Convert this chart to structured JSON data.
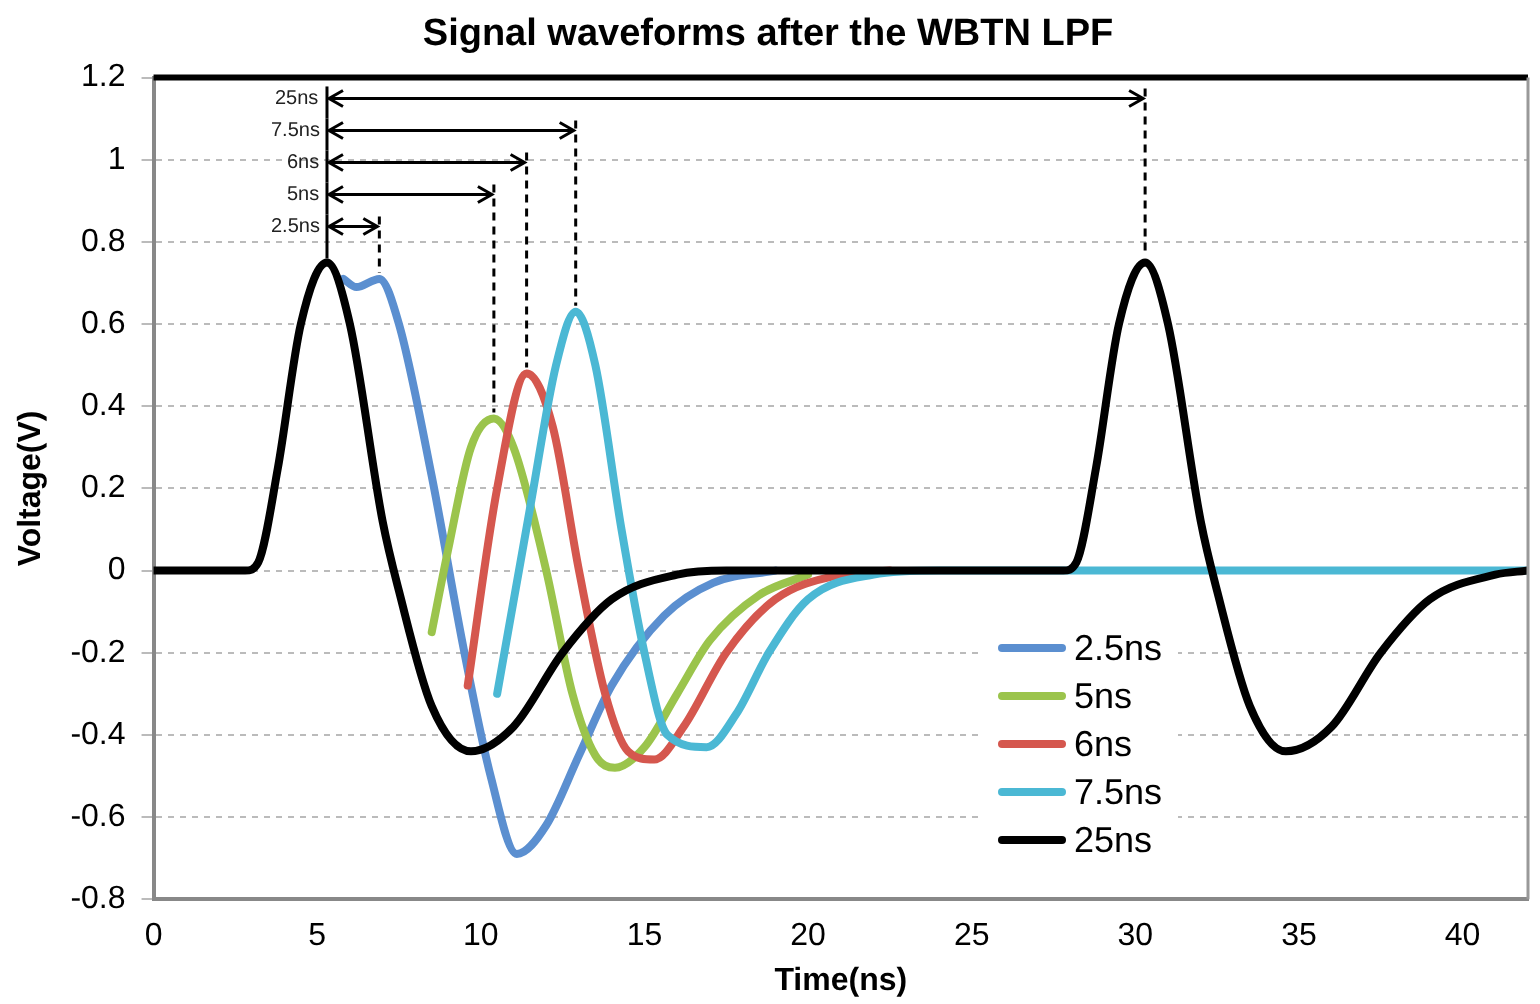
{
  "chart_data": {
    "type": "line",
    "title": "Signal waveforms after the WBTN LPF",
    "xlabel": "Time(ns)",
    "ylabel": "Voltage(V)",
    "xlim": [
      0,
      42
    ],
    "xticks": [
      0,
      5,
      10,
      15,
      20,
      25,
      30,
      35,
      40
    ],
    "ylim": [
      -0.8,
      1.2
    ],
    "yticks": [
      -0.8,
      -0.6,
      -0.4,
      -0.2,
      0,
      0.2,
      0.4,
      0.6,
      0.8,
      1,
      1.2
    ],
    "grid": "y",
    "legend": "bottom right",
    "marker": "none",
    "line_style": "solid",
    "series": [
      {
        "name": "2.5ns",
        "color": "#5b8fd0",
        "x": [
          5.8,
          6.2,
          6.9,
          7.5,
          8.5,
          9.5,
          10.3,
          11.1,
          12,
          13,
          14,
          15.6,
          17.1,
          19
        ],
        "values": [
          0.71,
          0.69,
          0.71,
          0.6,
          0.23,
          -0.2,
          -0.5,
          -0.69,
          -0.62,
          -0.45,
          -0.28,
          -0.11,
          -0.03,
          0
        ]
      },
      {
        "name": "5ns",
        "color": "#9bc44c",
        "x": [
          8.5,
          9,
          9.7,
          10.4,
          11,
          12,
          12.8,
          13.5,
          14.1,
          15,
          16,
          17,
          18.5,
          20
        ],
        "values": [
          -0.15,
          0.05,
          0.3,
          0.37,
          0.3,
          0,
          -0.3,
          -0.45,
          -0.48,
          -0.43,
          -0.3,
          -0.17,
          -0.06,
          -0.01
        ]
      },
      {
        "name": "6ns",
        "color": "#d5574e",
        "x": [
          9.6,
          10.5,
          11.4,
          12.2,
          13,
          13.8,
          14.5,
          15.3,
          16.2,
          17.5,
          19,
          21,
          22.5
        ],
        "values": [
          -0.28,
          0.2,
          0.48,
          0.35,
          0,
          -0.3,
          -0.44,
          -0.46,
          -0.38,
          -0.2,
          -0.07,
          -0.01,
          0
        ]
      },
      {
        "name": "7.5ns",
        "color": "#4bb8d4",
        "x": [
          10.5,
          11.5,
          12.3,
          12.9,
          13.5,
          14.3,
          15,
          15.7,
          16.9,
          17.8,
          18.8,
          20,
          22,
          24,
          42
        ],
        "values": [
          -0.3,
          0.15,
          0.5,
          0.63,
          0.5,
          0.1,
          -0.2,
          -0.4,
          -0.43,
          -0.35,
          -0.2,
          -0.07,
          -0.01,
          0,
          0
        ]
      },
      {
        "name": "25ns",
        "color": "#000000",
        "x": [
          0,
          2.8,
          3.2,
          3.8,
          4.5,
          5.3,
          6,
          7,
          7.5,
          8.5,
          9.7,
          11,
          12.5,
          14,
          16,
          17.5,
          27.8,
          28.2,
          28.8,
          29.5,
          30.3,
          31,
          32,
          32.5,
          33.5,
          34.6,
          36,
          37.5,
          39,
          41,
          42
        ],
        "values": [
          0,
          0,
          0.02,
          0.25,
          0.6,
          0.75,
          0.6,
          0.12,
          -0.05,
          -0.33,
          -0.44,
          -0.38,
          -0.2,
          -0.07,
          -0.01,
          0,
          0,
          0.02,
          0.25,
          0.6,
          0.75,
          0.6,
          0.12,
          -0.05,
          -0.33,
          -0.44,
          -0.38,
          -0.2,
          -0.07,
          -0.01,
          0
        ]
      }
    ],
    "annotations": [
      "2.5ns",
      "5ns",
      "6ns",
      "7.5ns",
      "25ns"
    ]
  }
}
